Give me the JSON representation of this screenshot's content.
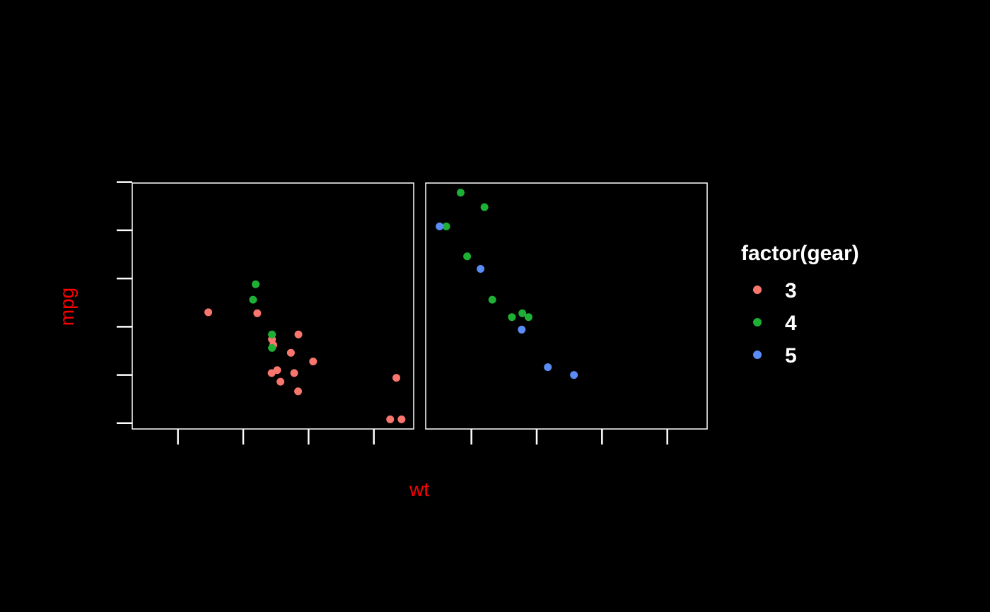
{
  "chart_data": {
    "type": "scatter",
    "title": "",
    "xlabel": "wt",
    "ylabel": "mpg",
    "label_color": "#ff0000",
    "axis_color": "#ffffff",
    "background": "#000000",
    "xlim": [
      1.3,
      5.61
    ],
    "ylim": [
      9.4,
      34.9
    ],
    "x_ticks": [
      2,
      3,
      4,
      5
    ],
    "y_ticks": [
      10,
      15,
      20,
      25,
      30,
      35
    ],
    "facets": [
      {
        "name": "left",
        "points": [
          {
            "wt": 2.465,
            "mpg": 21.5,
            "gear": "3"
          },
          {
            "wt": 3.215,
            "mpg": 21.4,
            "gear": "3"
          },
          {
            "wt": 3.44,
            "mpg": 18.7,
            "gear": "3"
          },
          {
            "wt": 3.46,
            "mpg": 18.1,
            "gear": "3"
          },
          {
            "wt": 3.57,
            "mpg": 14.3,
            "gear": "3"
          },
          {
            "wt": 4.07,
            "mpg": 16.4,
            "gear": "3"
          },
          {
            "wt": 3.73,
            "mpg": 17.3,
            "gear": "3"
          },
          {
            "wt": 3.78,
            "mpg": 15.2,
            "gear": "3"
          },
          {
            "wt": 5.25,
            "mpg": 10.4,
            "gear": "3"
          },
          {
            "wt": 5.424,
            "mpg": 10.4,
            "gear": "3"
          },
          {
            "wt": 5.345,
            "mpg": 14.7,
            "gear": "3"
          },
          {
            "wt": 3.52,
            "mpg": 15.5,
            "gear": "3"
          },
          {
            "wt": 3.435,
            "mpg": 15.2,
            "gear": "3"
          },
          {
            "wt": 3.84,
            "mpg": 13.3,
            "gear": "3"
          },
          {
            "wt": 3.845,
            "mpg": 19.2,
            "gear": "3"
          },
          {
            "wt": 3.19,
            "mpg": 24.4,
            "gear": "4"
          },
          {
            "wt": 3.15,
            "mpg": 22.8,
            "gear": "4"
          },
          {
            "wt": 3.44,
            "mpg": 19.2,
            "gear": "4"
          },
          {
            "wt": 3.44,
            "mpg": 17.8,
            "gear": "4"
          }
        ]
      },
      {
        "name": "right",
        "points": [
          {
            "wt": 2.62,
            "mpg": 21.0,
            "gear": "4"
          },
          {
            "wt": 2.875,
            "mpg": 21.0,
            "gear": "4"
          },
          {
            "wt": 2.32,
            "mpg": 22.8,
            "gear": "4"
          },
          {
            "wt": 2.2,
            "mpg": 32.4,
            "gear": "4"
          },
          {
            "wt": 1.615,
            "mpg": 30.4,
            "gear": "4"
          },
          {
            "wt": 1.835,
            "mpg": 33.9,
            "gear": "4"
          },
          {
            "wt": 1.935,
            "mpg": 27.3,
            "gear": "4"
          },
          {
            "wt": 2.78,
            "mpg": 21.4,
            "gear": "4"
          },
          {
            "wt": 2.14,
            "mpg": 26.0,
            "gear": "5"
          },
          {
            "wt": 1.513,
            "mpg": 30.4,
            "gear": "5"
          },
          {
            "wt": 3.17,
            "mpg": 15.8,
            "gear": "5"
          },
          {
            "wt": 2.77,
            "mpg": 19.7,
            "gear": "5"
          },
          {
            "wt": 3.57,
            "mpg": 15.0,
            "gear": "5"
          }
        ]
      }
    ],
    "legend": {
      "title": "factor(gear)",
      "position": "right",
      "entries": [
        {
          "label": "3",
          "color": "#f8766d"
        },
        {
          "label": "4",
          "color": "#1eb034"
        },
        {
          "label": "5",
          "color": "#5b8cf5"
        }
      ]
    }
  }
}
